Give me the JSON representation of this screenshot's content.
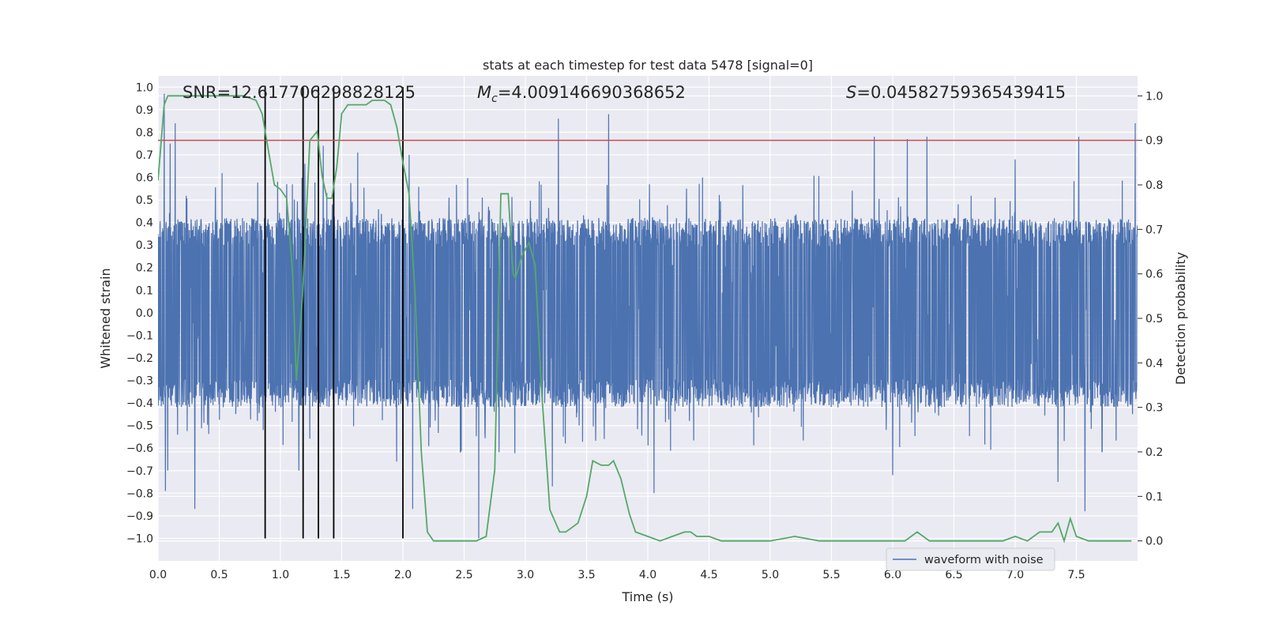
{
  "chart_data": {
    "type": "line",
    "title": "stats at each timestep for test data 5478 [signal=0]",
    "xlabel": "Time (s)",
    "ylabel": "Whitened strain",
    "y2label": "Detection probability",
    "xlim": [
      0.0,
      8.0
    ],
    "ylim": [
      -1.1,
      1.05
    ],
    "y2lim": [
      -0.045,
      1.045
    ],
    "xticks": [
      "0.0",
      "0.5",
      "1.0",
      "1.5",
      "2.0",
      "2.5",
      "3.0",
      "3.5",
      "4.0",
      "4.5",
      "5.0",
      "5.5",
      "6.0",
      "6.5",
      "7.0",
      "7.5"
    ],
    "yticks": [
      "−1.0",
      "−0.9",
      "−0.8",
      "−0.7",
      "−0.6",
      "−0.5",
      "−0.4",
      "−0.3",
      "−0.2",
      "−0.1",
      "0.0",
      "0.1",
      "0.2",
      "0.3",
      "0.4",
      "0.5",
      "0.6",
      "0.7",
      "0.8",
      "0.9",
      "1.0"
    ],
    "y2ticks": [
      "0.0",
      "0.1",
      "0.2",
      "0.3",
      "0.4",
      "0.5",
      "0.6",
      "0.7",
      "0.8",
      "0.9",
      "1.0"
    ],
    "grid": true,
    "legend": {
      "placement": "lower-right",
      "entries": [
        "waveform with noise"
      ]
    },
    "annotations": {
      "snr": "SNR=12.617706298828125",
      "mc_symbol": "M",
      "mc_sub": "c",
      "mc_value": "=4.009146690368652",
      "s_symbol": "S",
      "s_value": "=0.04582759365439415"
    },
    "threshold": {
      "axis": "right",
      "value": 0.9
    },
    "event_markers_x": [
      0.875,
      1.185,
      1.31,
      1.435,
      2.0
    ],
    "event_marker_ymin": -1.0,
    "event_marker_ymax": 1.0,
    "strain_noise": {
      "samples": 4096,
      "band_min": -0.42,
      "band_max": 0.42
    },
    "strain_spikes": [
      {
        "x": 0.05,
        "y": 0.97
      },
      {
        "x": 0.06,
        "y": -0.79
      },
      {
        "x": 0.08,
        "y": -0.7
      },
      {
        "x": 0.1,
        "y": 0.75
      },
      {
        "x": 0.14,
        "y": 0.84
      },
      {
        "x": 0.3,
        "y": -0.87
      },
      {
        "x": 0.86,
        "y": -0.52
      },
      {
        "x": 1.05,
        "y": 0.57
      },
      {
        "x": 1.15,
        "y": -0.7
      },
      {
        "x": 1.2,
        "y": 0.66
      },
      {
        "x": 1.35,
        "y": 0.74
      },
      {
        "x": 1.63,
        "y": 0.71
      },
      {
        "x": 1.95,
        "y": -0.66
      },
      {
        "x": 2.05,
        "y": 0.7
      },
      {
        "x": 2.08,
        "y": -0.87
      },
      {
        "x": 2.62,
        "y": -1.0
      },
      {
        "x": 3.22,
        "y": -0.77
      },
      {
        "x": 3.27,
        "y": 0.86
      },
      {
        "x": 3.68,
        "y": 0.88
      },
      {
        "x": 4.05,
        "y": -0.8
      },
      {
        "x": 5.85,
        "y": 0.78
      },
      {
        "x": 6.0,
        "y": -0.72
      },
      {
        "x": 6.12,
        "y": 0.77
      },
      {
        "x": 6.28,
        "y": 0.78
      },
      {
        "x": 7.0,
        "y": 0.68
      },
      {
        "x": 7.35,
        "y": -0.75
      },
      {
        "x": 7.52,
        "y": 0.78
      },
      {
        "x": 7.57,
        "y": -0.88
      },
      {
        "x": 7.98,
        "y": 0.84
      }
    ],
    "probability": {
      "x": [
        0.0,
        0.05,
        0.08,
        0.15,
        0.3,
        0.5,
        0.6,
        0.7,
        0.8,
        0.85,
        0.9,
        0.95,
        1.0,
        1.05,
        1.1,
        1.13,
        1.18,
        1.24,
        1.3,
        1.34,
        1.38,
        1.42,
        1.46,
        1.5,
        1.55,
        1.6,
        1.7,
        1.75,
        1.85,
        1.9,
        1.95,
        2.0,
        2.05,
        2.1,
        2.15,
        2.2,
        2.25,
        2.35,
        2.5,
        2.6,
        2.68,
        2.75,
        2.8,
        2.86,
        2.9,
        2.92,
        2.97,
        3.03,
        3.08,
        3.13,
        3.2,
        3.28,
        3.33,
        3.38,
        3.43,
        3.5,
        3.55,
        3.62,
        3.68,
        3.72,
        3.78,
        3.85,
        3.9,
        4.0,
        4.1,
        4.2,
        4.3,
        4.35,
        4.4,
        4.5,
        4.6,
        4.8,
        5.0,
        5.2,
        5.4,
        5.6,
        5.8,
        5.9,
        6.0,
        6.1,
        6.15,
        6.2,
        6.3,
        6.4,
        6.6,
        6.8,
        6.9,
        7.0,
        7.1,
        7.2,
        7.3,
        7.35,
        7.4,
        7.45,
        7.5,
        7.6,
        7.7,
        7.85,
        7.95
      ],
      "y": [
        0.81,
        0.98,
        1.0,
        1.0,
        1.0,
        1.0,
        1.0,
        1.0,
        0.99,
        0.96,
        0.88,
        0.8,
        0.79,
        0.77,
        0.6,
        0.36,
        0.55,
        0.9,
        0.92,
        0.82,
        0.77,
        0.77,
        0.84,
        0.96,
        0.98,
        0.98,
        0.98,
        0.99,
        0.99,
        0.98,
        0.93,
        0.85,
        0.78,
        0.55,
        0.2,
        0.02,
        0.0,
        0.0,
        0.0,
        0.0,
        0.01,
        0.16,
        0.78,
        0.78,
        0.6,
        0.59,
        0.64,
        0.67,
        0.62,
        0.35,
        0.07,
        0.02,
        0.02,
        0.03,
        0.04,
        0.1,
        0.18,
        0.17,
        0.17,
        0.18,
        0.14,
        0.06,
        0.02,
        0.01,
        0.0,
        0.01,
        0.02,
        0.02,
        0.01,
        0.01,
        0.0,
        0.0,
        0.0,
        0.01,
        0.0,
        0.0,
        0.0,
        0.0,
        0.0,
        0.0,
        0.01,
        0.02,
        0.0,
        0.0,
        0.0,
        0.0,
        0.0,
        0.01,
        0.0,
        0.02,
        0.02,
        0.04,
        0.0,
        0.05,
        0.01,
        0.0,
        0.0,
        0.0,
        0.0
      ]
    },
    "colors": {
      "background": "#eaeaf2",
      "grid": "#ffffff",
      "strain": "#4c72b0",
      "probability": "#55a868",
      "threshold": "#c44e52",
      "markers": "#000000",
      "text": "#262626"
    }
  }
}
